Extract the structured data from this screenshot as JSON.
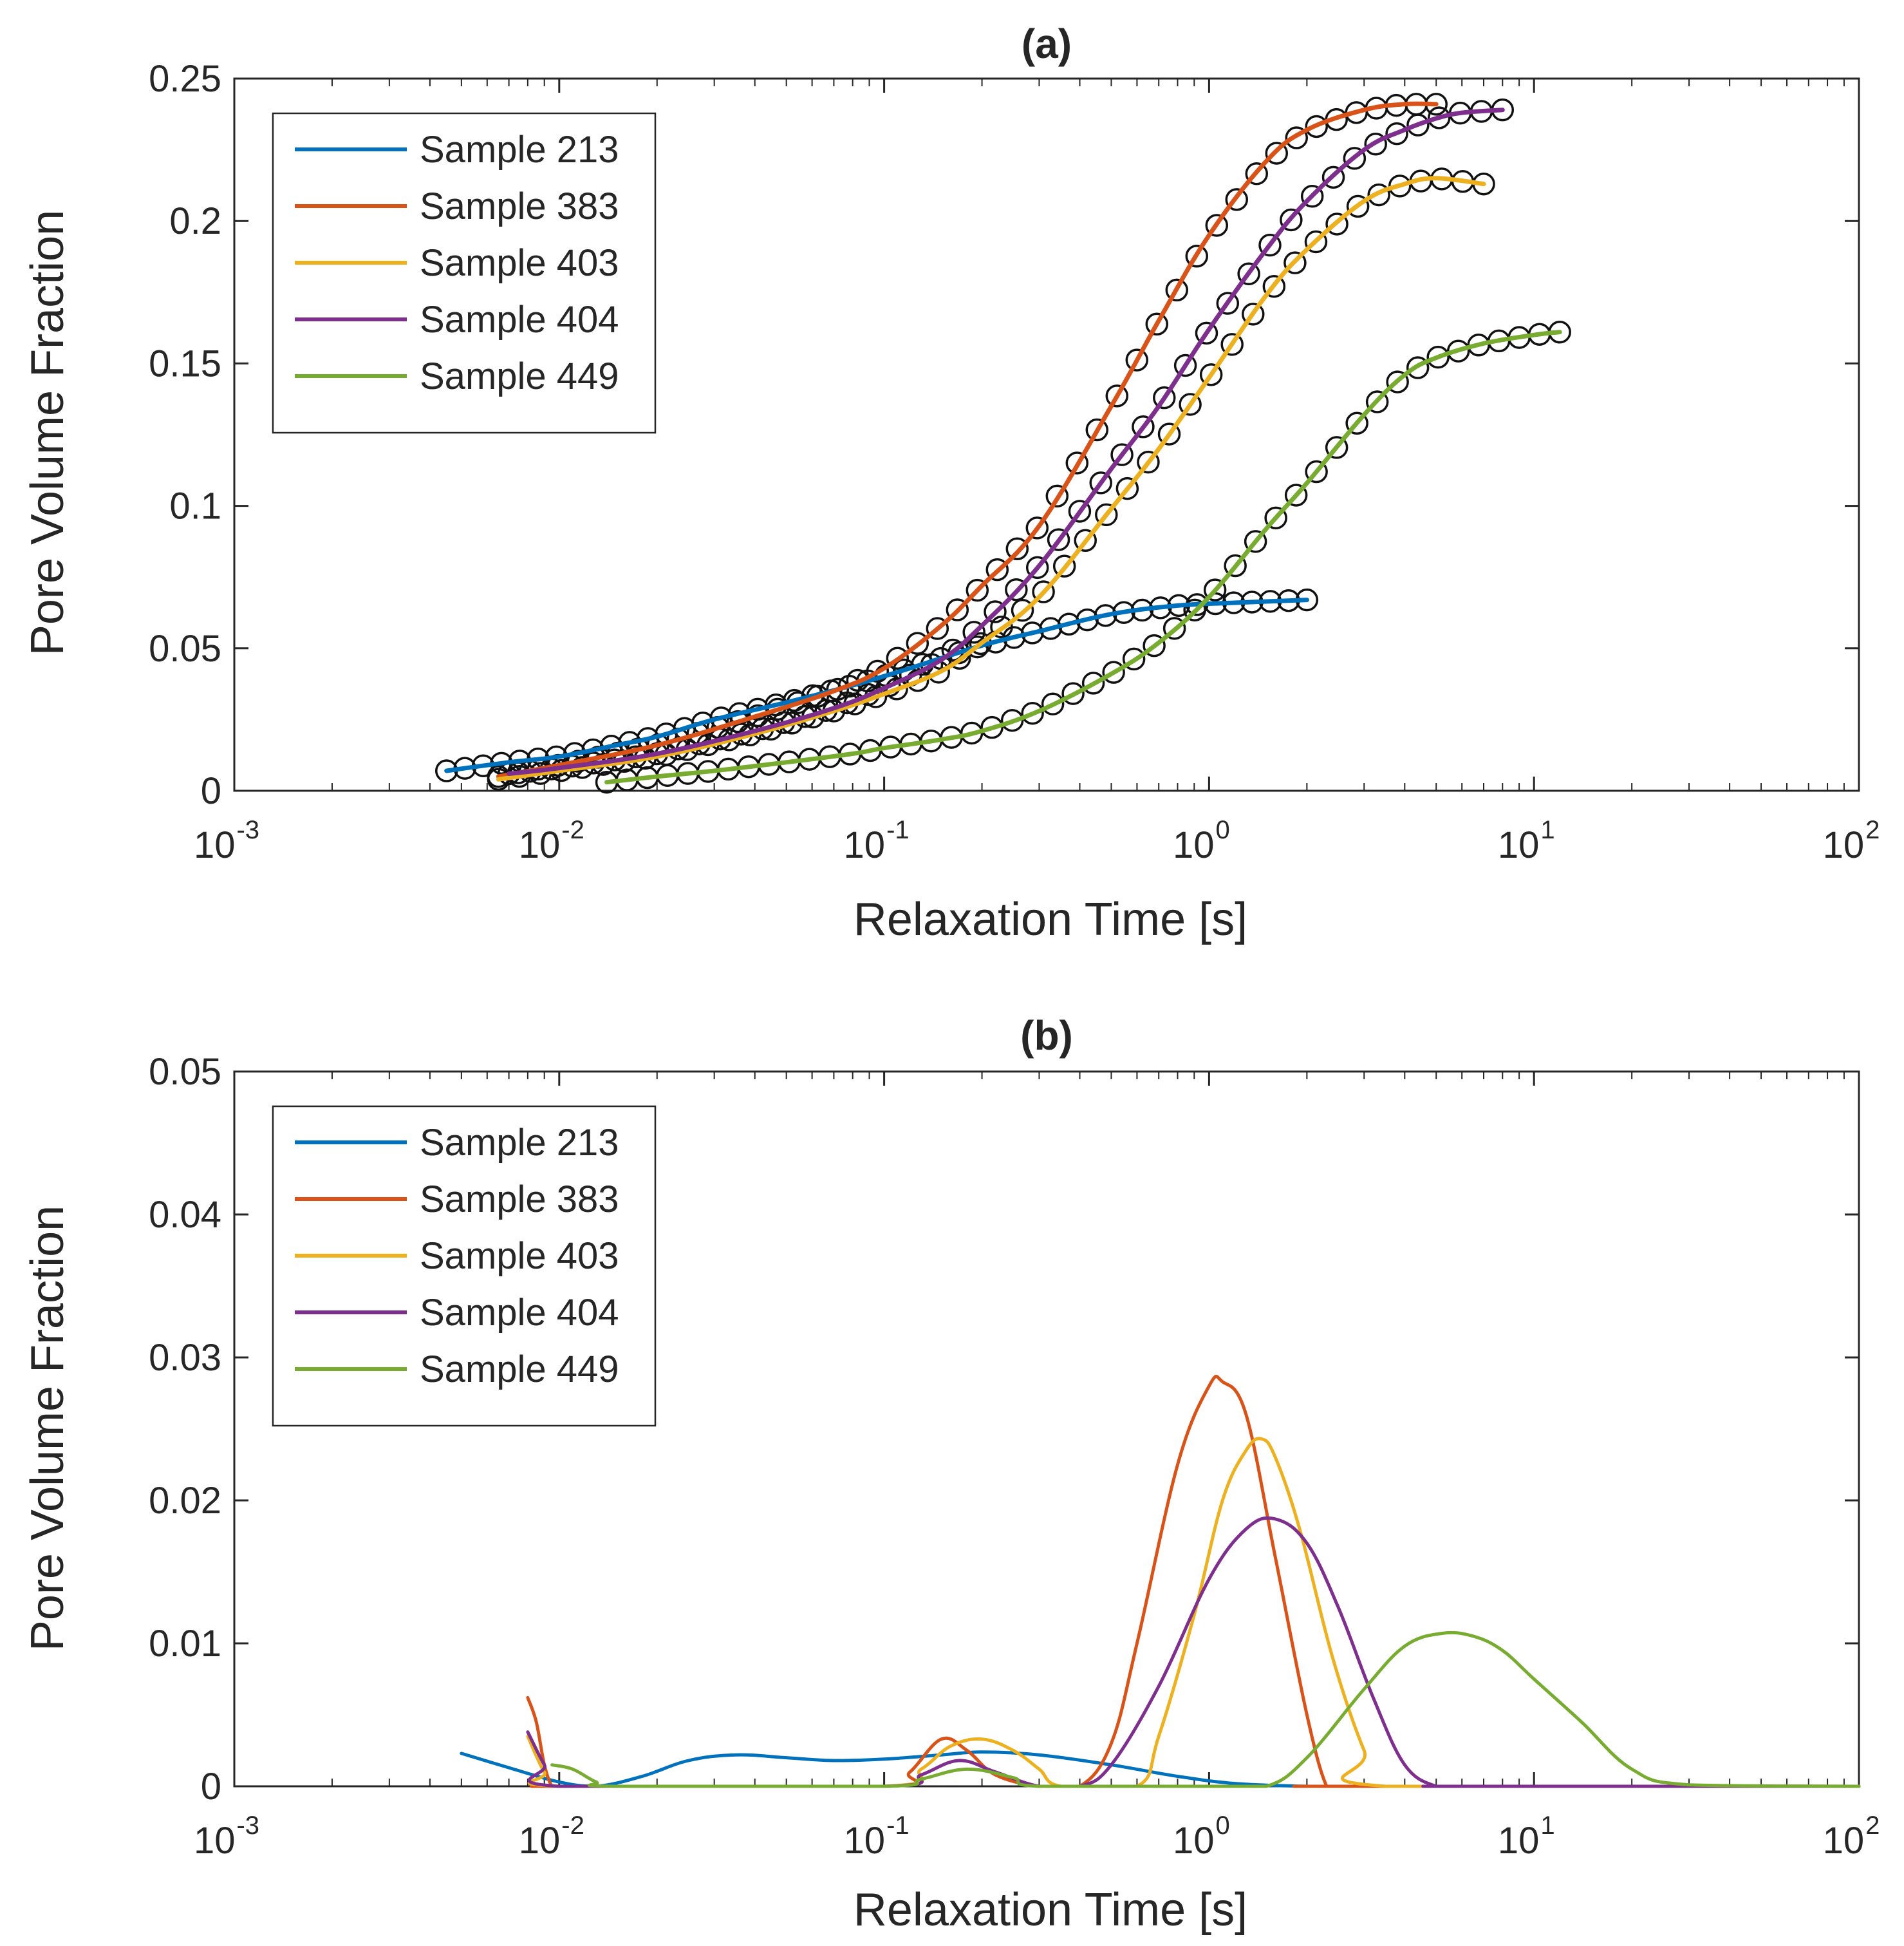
{
  "chart_data": [
    {
      "type": "line",
      "title": "(a)",
      "xlabel": "Relaxation Time [s]",
      "ylabel": "Pore Volume Fraction",
      "xscale": "log",
      "xlim": [
        0.001,
        100
      ],
      "ylim": [
        0,
        0.25
      ],
      "xticks": [
        {
          "base": "10",
          "exp": "-3",
          "value": 0.001
        },
        {
          "base": "10",
          "exp": "-2",
          "value": 0.01
        },
        {
          "base": "10",
          "exp": "-1",
          "value": 0.1
        },
        {
          "base": "10",
          "exp": "0",
          "value": 1
        },
        {
          "base": "10",
          "exp": "1",
          "value": 10
        },
        {
          "base": "10",
          "exp": "2",
          "value": 100
        }
      ],
      "yticks": [
        {
          "label": "0",
          "value": 0
        },
        {
          "label": "0.05",
          "value": 0.05
        },
        {
          "label": "0.1",
          "value": 0.1
        },
        {
          "label": "0.15",
          "value": 0.15
        },
        {
          "label": "0.2",
          "value": 0.2
        },
        {
          "label": "0.25",
          "value": 0.25
        }
      ],
      "legend_position": "top-left",
      "markers": "open circles (measured data)",
      "series": [
        {
          "name": "Sample 213",
          "color": "#0072BD",
          "x": [
            0.0045,
            0.007,
            0.01,
            0.015,
            0.02,
            0.03,
            0.05,
            0.08,
            0.12,
            0.2,
            0.3,
            0.5,
            0.8,
            1.2,
            2.0
          ],
          "y": [
            0.007,
            0.01,
            0.012,
            0.016,
            0.019,
            0.025,
            0.031,
            0.037,
            0.043,
            0.051,
            0.056,
            0.062,
            0.065,
            0.066,
            0.067
          ]
        },
        {
          "name": "Sample 383",
          "color": "#D95319",
          "x": [
            0.0065,
            0.01,
            0.02,
            0.04,
            0.07,
            0.1,
            0.15,
            0.2,
            0.3,
            0.5,
            0.7,
            1.0,
            1.5,
            2.0,
            3.0,
            4.0,
            5.0
          ],
          "y": [
            0.005,
            0.009,
            0.016,
            0.026,
            0.035,
            0.043,
            0.058,
            0.072,
            0.093,
            0.135,
            0.165,
            0.195,
            0.221,
            0.232,
            0.239,
            0.241,
            0.241
          ]
        },
        {
          "name": "Sample 403",
          "color": "#EDB120",
          "x": [
            0.0065,
            0.01,
            0.02,
            0.04,
            0.07,
            0.1,
            0.15,
            0.2,
            0.3,
            0.5,
            0.7,
            1.0,
            1.5,
            2.0,
            3.0,
            4.0,
            5.0,
            7.0
          ],
          "y": [
            0.004,
            0.007,
            0.012,
            0.02,
            0.028,
            0.034,
            0.042,
            0.052,
            0.068,
            0.099,
            0.12,
            0.145,
            0.174,
            0.19,
            0.207,
            0.213,
            0.215,
            0.213
          ]
        },
        {
          "name": "Sample 404",
          "color": "#7E2F8E",
          "x": [
            0.007,
            0.01,
            0.02,
            0.04,
            0.07,
            0.1,
            0.15,
            0.2,
            0.3,
            0.5,
            0.7,
            1.0,
            1.5,
            2.0,
            3.0,
            4.0,
            5.0,
            6.0,
            8.0
          ],
          "y": [
            0.006,
            0.008,
            0.013,
            0.021,
            0.029,
            0.036,
            0.046,
            0.058,
            0.079,
            0.113,
            0.135,
            0.162,
            0.19,
            0.207,
            0.225,
            0.232,
            0.236,
            0.238,
            0.239
          ]
        },
        {
          "name": "Sample 449",
          "color": "#77AC30",
          "x": [
            0.014,
            0.02,
            0.03,
            0.05,
            0.08,
            0.1,
            0.15,
            0.2,
            0.3,
            0.5,
            0.7,
            1.0,
            1.5,
            2.0,
            3.0,
            4.0,
            5.0,
            7.0,
            10.0,
            12.0
          ],
          "y": [
            0.003,
            0.005,
            0.007,
            0.01,
            0.013,
            0.015,
            0.018,
            0.021,
            0.028,
            0.041,
            0.052,
            0.068,
            0.092,
            0.108,
            0.132,
            0.146,
            0.152,
            0.157,
            0.16,
            0.161
          ]
        }
      ]
    },
    {
      "type": "line",
      "title": "(b)",
      "xlabel": "Relaxation Time [s]",
      "ylabel": "Pore Volume Fraction",
      "xscale": "log",
      "xlim": [
        0.001,
        100
      ],
      "ylim": [
        0,
        0.05
      ],
      "xticks": [
        {
          "base": "10",
          "exp": "-3",
          "value": 0.001
        },
        {
          "base": "10",
          "exp": "-2",
          "value": 0.01
        },
        {
          "base": "10",
          "exp": "-1",
          "value": 0.1
        },
        {
          "base": "10",
          "exp": "0",
          "value": 1
        },
        {
          "base": "10",
          "exp": "1",
          "value": 10
        },
        {
          "base": "10",
          "exp": "2",
          "value": 100
        }
      ],
      "yticks": [
        {
          "label": "0",
          "value": 0
        },
        {
          "label": "0.01",
          "value": 0.01
        },
        {
          "label": "0.02",
          "value": 0.02
        },
        {
          "label": "0.03",
          "value": 0.03
        },
        {
          "label": "0.04",
          "value": 0.04
        },
        {
          "label": "0.05",
          "value": 0.05
        }
      ],
      "legend_position": "top-left",
      "series": [
        {
          "name": "Sample 213",
          "color": "#0072BD",
          "x": [
            0.005,
            0.007,
            0.01,
            0.013,
            0.018,
            0.025,
            0.035,
            0.05,
            0.07,
            0.1,
            0.15,
            0.2,
            0.3,
            0.5,
            0.8,
            1.2,
            2.0,
            3.0,
            100
          ],
          "y": [
            0.0023,
            0.0013,
            0.0003,
            0.0,
            0.0007,
            0.0018,
            0.0022,
            0.002,
            0.0018,
            0.0019,
            0.0022,
            0.0024,
            0.0022,
            0.0015,
            0.0007,
            0.0002,
            0.0,
            0.0,
            0.0
          ]
        },
        {
          "name": "Sample 383",
          "color": "#D95319",
          "x": [
            0.008,
            0.0085,
            0.009,
            0.0095,
            0.01,
            0.1,
            0.12,
            0.15,
            0.18,
            0.22,
            0.3,
            0.4,
            0.5,
            0.6,
            0.8,
            1.0,
            1.1,
            1.3,
            1.6,
            2.0,
            2.3,
            2.5,
            100
          ],
          "y": [
            0.0062,
            0.0045,
            0.0015,
            0.0,
            0.0,
            0.0,
            0.001,
            0.0033,
            0.0025,
            0.0008,
            0.0,
            0.0,
            0.003,
            0.01,
            0.0225,
            0.028,
            0.0283,
            0.026,
            0.016,
            0.005,
            0.0,
            0.0,
            0.0
          ]
        },
        {
          "name": "Sample 403",
          "color": "#EDB120",
          "x": [
            0.008,
            0.009,
            0.01,
            0.1,
            0.13,
            0.16,
            0.2,
            0.25,
            0.3,
            0.35,
            0.6,
            0.7,
            0.9,
            1.1,
            1.3,
            1.45,
            1.6,
            1.9,
            2.4,
            3.0,
            3.5,
            100
          ],
          "y": [
            0.0035,
            0.001,
            0.0,
            0.0,
            0.0012,
            0.0028,
            0.0033,
            0.0025,
            0.0012,
            0.0,
            0.0,
            0.0035,
            0.012,
            0.02,
            0.0235,
            0.0243,
            0.023,
            0.018,
            0.009,
            0.0025,
            0.0,
            0.0
          ]
        },
        {
          "name": "Sample 404",
          "color": "#7E2F8E",
          "x": [
            0.008,
            0.009,
            0.01,
            0.1,
            0.13,
            0.17,
            0.22,
            0.3,
            0.4,
            0.5,
            0.7,
            1.0,
            1.3,
            1.6,
            2.0,
            2.5,
            3.2,
            4.0,
            5.0,
            6.0,
            100
          ],
          "y": [
            0.0038,
            0.0015,
            0.0,
            0.0,
            0.0008,
            0.0018,
            0.001,
            0.0,
            0.0,
            0.0015,
            0.007,
            0.0145,
            0.018,
            0.0187,
            0.017,
            0.0125,
            0.0062,
            0.0015,
            0.0,
            0.0,
            0.0
          ]
        },
        {
          "name": "Sample 449",
          "color": "#77AC30",
          "x": [
            0.0095,
            0.011,
            0.013,
            0.015,
            0.1,
            0.13,
            0.18,
            0.25,
            0.3,
            1.0,
            1.5,
            2.0,
            3.0,
            4.0,
            5.2,
            6.5,
            8.0,
            10.0,
            14.0,
            20.0,
            30.0,
            100
          ],
          "y": [
            0.0015,
            0.0012,
            0.0003,
            0.0,
            0.0,
            0.0005,
            0.0012,
            0.0006,
            0.0,
            0.0,
            0.0,
            0.002,
            0.0068,
            0.0098,
            0.0107,
            0.0105,
            0.0095,
            0.0075,
            0.0045,
            0.0012,
            0.0001,
            0.0
          ]
        }
      ]
    }
  ]
}
